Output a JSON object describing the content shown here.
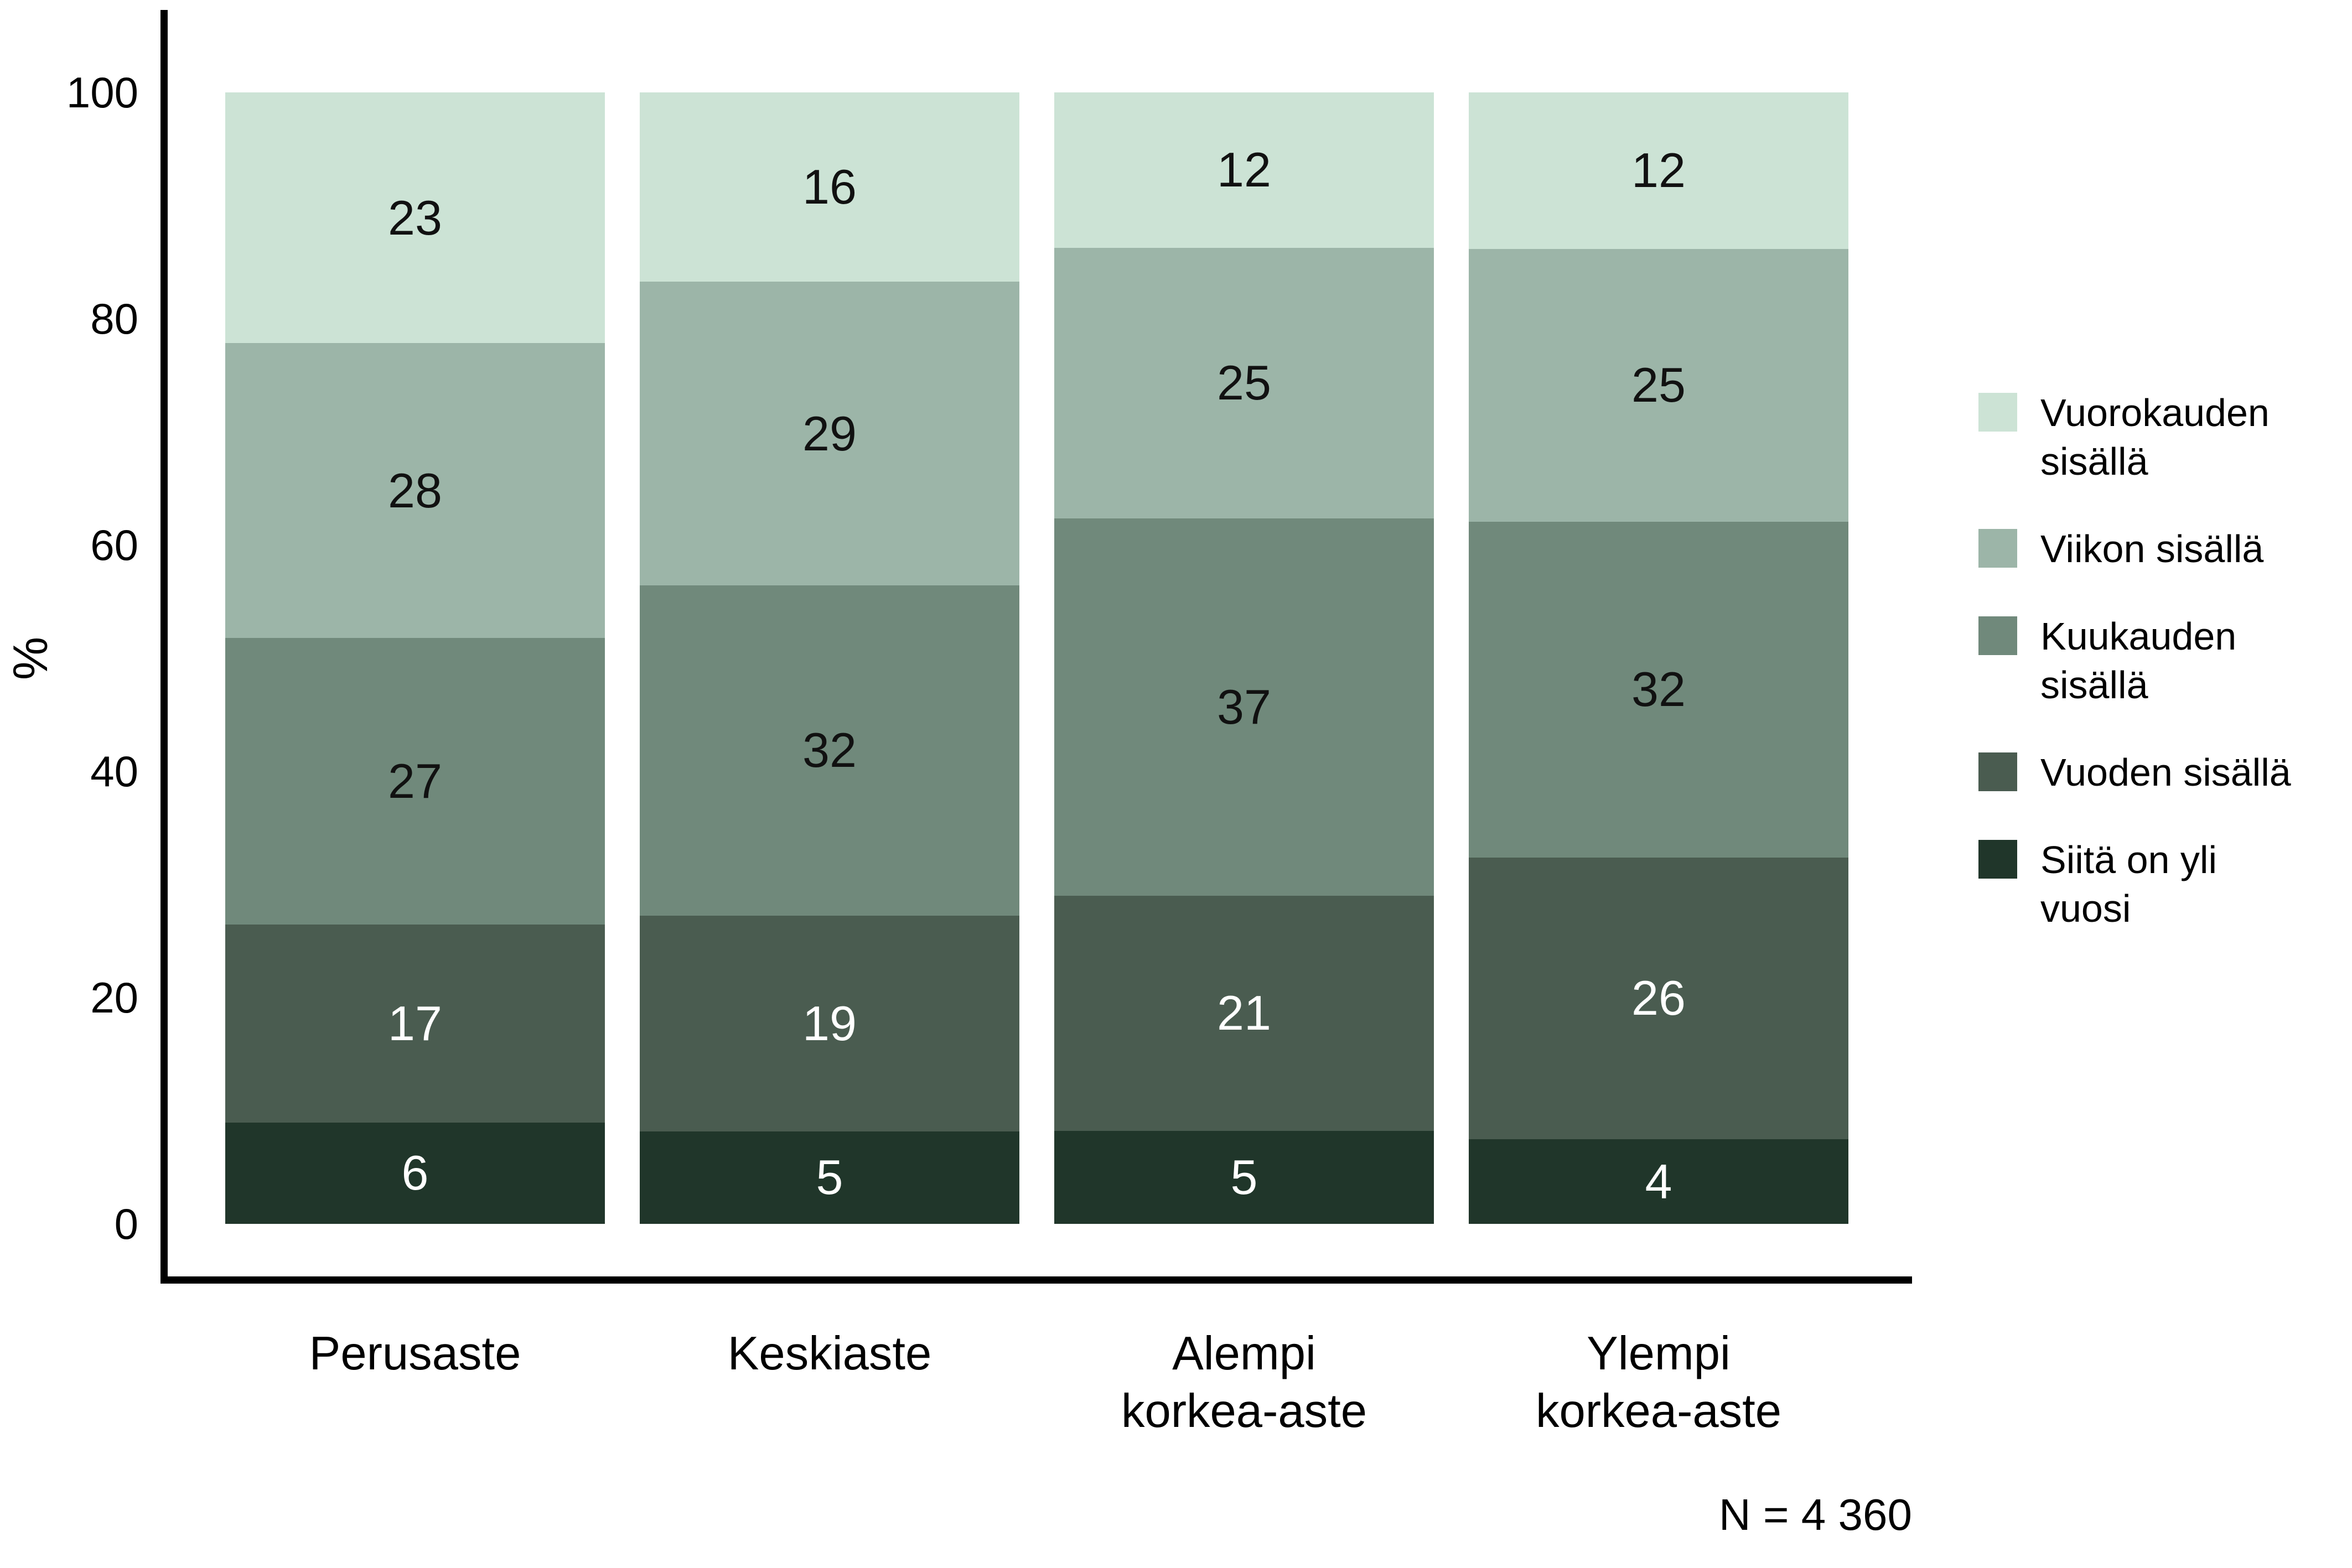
{
  "chart_data": {
    "type": "bar",
    "stacked": true,
    "title": "",
    "xlabel": "",
    "ylabel": "%",
    "ylim": [
      0,
      100
    ],
    "yticks": [
      0,
      20,
      40,
      60,
      80,
      100
    ],
    "grid": false,
    "legend_position": "right",
    "categories": [
      "Perusaste",
      "Keskiaste",
      "Alempi korkea-aste",
      "Ylempi korkea-aste"
    ],
    "category_lines": [
      [
        "Perusaste"
      ],
      [
        "Keskiaste"
      ],
      [
        "Alempi",
        "korkea-aste"
      ],
      [
        "Ylempi",
        "korkea-aste"
      ]
    ],
    "series": [
      {
        "name": "Siitä on yli vuosi",
        "color": "#20362a",
        "text_color": "#ffffff",
        "values": [
          6,
          5,
          5,
          4
        ]
      },
      {
        "name": "Vuoden sisällä",
        "color": "#4a5c50",
        "text_color": "#ffffff",
        "values": [
          17,
          19,
          21,
          26
        ]
      },
      {
        "name": "Kuukauden sisällä",
        "color": "#70897b",
        "text_color": "#111111",
        "values": [
          27,
          32,
          37,
          32
        ]
      },
      {
        "name": "Viikon sisällä",
        "color": "#9cb5a8",
        "text_color": "#111111",
        "values": [
          28,
          29,
          25,
          25
        ]
      },
      {
        "name": "Vuorokauden sisällä",
        "color": "#cce3d5",
        "text_color": "#111111",
        "values": [
          23,
          16,
          12,
          12
        ]
      }
    ],
    "legend": [
      {
        "label": "Vuorokauden sisällä",
        "lines": [
          "Vuorokauden",
          "sisällä"
        ],
        "color": "#cce3d5"
      },
      {
        "label": "Viikon sisällä",
        "lines": [
          "Viikon sisällä"
        ],
        "color": "#9cb5a8"
      },
      {
        "label": "Kuukauden sisällä",
        "lines": [
          "Kuukauden",
          "sisällä"
        ],
        "color": "#70897b"
      },
      {
        "label": "Vuoden sisällä",
        "lines": [
          "Vuoden sisällä"
        ],
        "color": "#4a5c50"
      },
      {
        "label": "Siitä on yli vuosi",
        "lines": [
          "Siitä on yli",
          "vuosi"
        ],
        "color": "#20362a"
      }
    ],
    "note": "N = 4 360",
    "axis_color": "#000000"
  }
}
